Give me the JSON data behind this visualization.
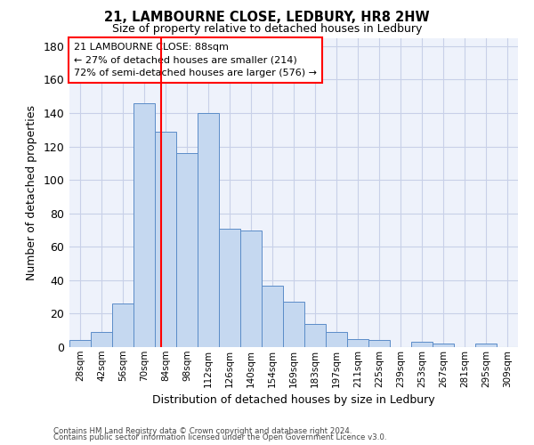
{
  "title_line1": "21, LAMBOURNE CLOSE, LEDBURY, HR8 2HW",
  "title_line2": "Size of property relative to detached houses in Ledbury",
  "xlabel": "Distribution of detached houses by size in Ledbury",
  "ylabel": "Number of detached properties",
  "categories": [
    "28sqm",
    "42sqm",
    "56sqm",
    "70sqm",
    "84sqm",
    "98sqm",
    "112sqm",
    "126sqm",
    "140sqm",
    "154sqm",
    "169sqm",
    "183sqm",
    "197sqm",
    "211sqm",
    "225sqm",
    "239sqm",
    "253sqm",
    "267sqm",
    "281sqm",
    "295sqm",
    "309sqm"
  ],
  "values": [
    4,
    9,
    26,
    146,
    129,
    116,
    140,
    71,
    70,
    37,
    27,
    14,
    9,
    5,
    4,
    0,
    3,
    2,
    0,
    2,
    0
  ],
  "bar_color": "#c5d8f0",
  "bar_edge_color": "#5b8cc8",
  "background_color": "#eef2fb",
  "grid_color": "#c8d0e8",
  "ylim": [
    0,
    185
  ],
  "yticks": [
    0,
    20,
    40,
    60,
    80,
    100,
    120,
    140,
    160,
    180
  ],
  "property_label": "21 LAMBOURNE CLOSE: 88sqm",
  "pct_smaller": "27% of detached houses are smaller (214)",
  "pct_larger": "72% of semi-detached houses are larger (576)",
  "footer_line1": "Contains HM Land Registry data © Crown copyright and database right 2024.",
  "footer_line2": "Contains public sector information licensed under the Open Government Licence v3.0."
}
